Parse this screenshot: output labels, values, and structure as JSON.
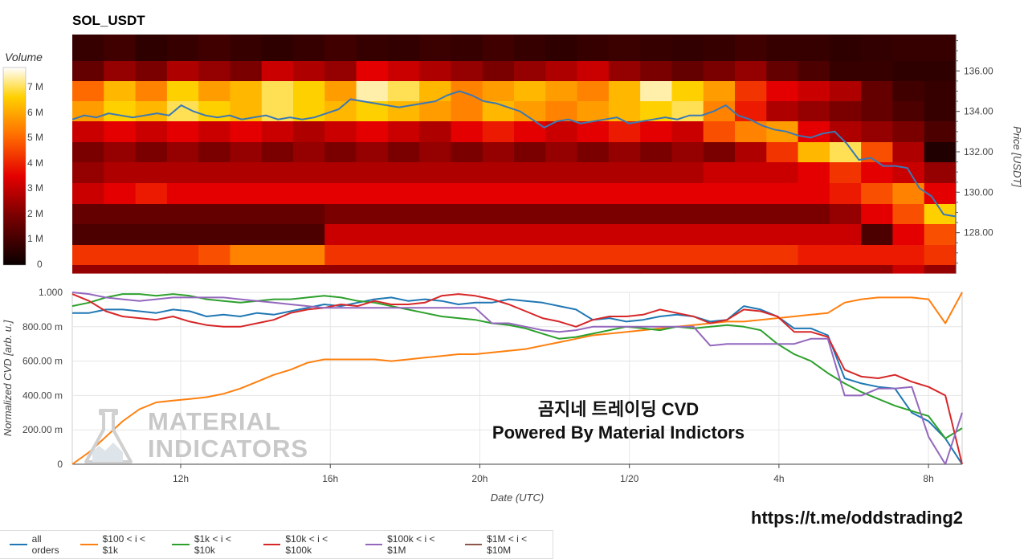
{
  "chart_data": [
    {
      "type": "heatmap",
      "title": "SOL_USDT",
      "colorbar_title": "Volume",
      "colorbar_ticks": [
        "7 M",
        "6 M",
        "5 M",
        "4 M",
        "3 M",
        "2 M",
        "1 M",
        "0"
      ],
      "ylabel": "Price [USDT]",
      "ylim": [
        126.0,
        137.8
      ],
      "y_ticks": [
        "136.00",
        "134.00",
        "132.00",
        "130.00",
        "128.00"
      ],
      "price_levels": [
        136.5,
        135.5,
        134.5,
        133.5,
        132.5,
        131.5,
        130.5,
        129.5,
        128.5,
        127.5,
        126.5,
        126.1
      ],
      "price_series": {
        "name": "Price",
        "color": "#3a78b5",
        "values": [
          133.6,
          133.8,
          133.7,
          133.9,
          133.8,
          133.7,
          133.8,
          133.9,
          133.8,
          134.3,
          134.0,
          133.8,
          133.7,
          133.8,
          133.6,
          133.7,
          133.8,
          133.6,
          133.7,
          133.6,
          133.7,
          133.9,
          134.1,
          134.6,
          134.5,
          134.4,
          134.3,
          134.2,
          134.3,
          134.4,
          134.5,
          134.8,
          135.0,
          134.8,
          134.5,
          134.4,
          134.2,
          134.0,
          133.6,
          133.2,
          133.5,
          133.6,
          133.4,
          133.5,
          133.6,
          133.7,
          133.4,
          133.5,
          133.6,
          133.7,
          133.6,
          133.8,
          133.8,
          134.0,
          134.3,
          133.8,
          133.6,
          133.3,
          133.1,
          133.0,
          132.8,
          132.7,
          132.9,
          133.0,
          132.4,
          131.6,
          131.7,
          131.3,
          131.3,
          131.2,
          130.2,
          129.8,
          128.9,
          128.8
        ]
      },
      "heat_rows": [
        [
          0.1,
          0.12,
          0.08,
          0.1,
          0.12,
          0.1,
          0.08,
          0.1,
          0.12,
          0.1,
          0.09,
          0.11,
          0.1,
          0.12,
          0.1,
          0.08,
          0.1,
          0.11,
          0.1,
          0.09,
          0.1,
          0.12,
          0.1,
          0.1,
          0.08,
          0.09,
          0.1,
          0.1
        ],
        [
          0.2,
          0.3,
          0.25,
          0.35,
          0.3,
          0.25,
          0.4,
          0.35,
          0.3,
          0.45,
          0.4,
          0.35,
          0.3,
          0.25,
          0.3,
          0.35,
          0.4,
          0.3,
          0.25,
          0.2,
          0.25,
          0.3,
          0.2,
          0.15,
          0.1,
          0.1,
          0.08,
          0.08
        ],
        [
          0.65,
          0.8,
          0.7,
          0.85,
          0.75,
          0.8,
          0.9,
          0.85,
          0.75,
          0.95,
          0.9,
          0.8,
          0.7,
          0.75,
          0.8,
          0.75,
          0.7,
          0.8,
          0.95,
          0.85,
          0.75,
          0.55,
          0.45,
          0.4,
          0.35,
          0.2,
          0.12,
          0.1
        ],
        [
          0.75,
          0.85,
          0.8,
          0.9,
          0.85,
          0.8,
          0.9,
          0.85,
          0.8,
          0.85,
          0.8,
          0.75,
          0.7,
          0.8,
          0.75,
          0.7,
          0.75,
          0.8,
          0.85,
          0.9,
          0.7,
          0.5,
          0.35,
          0.3,
          0.25,
          0.2,
          0.15,
          0.1
        ],
        [
          0.4,
          0.45,
          0.4,
          0.45,
          0.4,
          0.45,
          0.4,
          0.35,
          0.4,
          0.45,
          0.4,
          0.35,
          0.45,
          0.5,
          0.45,
          0.4,
          0.45,
          0.5,
          0.45,
          0.4,
          0.6,
          0.7,
          0.75,
          0.45,
          0.35,
          0.3,
          0.25,
          0.15
        ],
        [
          0.25,
          0.3,
          0.25,
          0.3,
          0.25,
          0.3,
          0.25,
          0.3,
          0.25,
          0.3,
          0.25,
          0.3,
          0.25,
          0.3,
          0.25,
          0.3,
          0.25,
          0.3,
          0.25,
          0.3,
          0.25,
          0.35,
          0.55,
          0.8,
          0.9,
          0.6,
          0.35,
          0.05
        ],
        [
          0.3,
          0.35,
          0.35,
          0.35,
          0.35,
          0.35,
          0.35,
          0.35,
          0.35,
          0.35,
          0.35,
          0.35,
          0.35,
          0.35,
          0.35,
          0.35,
          0.35,
          0.35,
          0.35,
          0.35,
          0.4,
          0.4,
          0.4,
          0.45,
          0.55,
          0.45,
          0.4,
          0.3
        ],
        [
          0.4,
          0.45,
          0.5,
          0.45,
          0.45,
          0.45,
          0.45,
          0.45,
          0.45,
          0.45,
          0.45,
          0.45,
          0.45,
          0.45,
          0.45,
          0.45,
          0.45,
          0.45,
          0.45,
          0.45,
          0.45,
          0.45,
          0.45,
          0.45,
          0.5,
          0.6,
          0.7,
          0.45
        ],
        [
          0.2,
          0.2,
          0.2,
          0.2,
          0.2,
          0.2,
          0.2,
          0.2,
          0.25,
          0.25,
          0.25,
          0.25,
          0.25,
          0.25,
          0.25,
          0.25,
          0.25,
          0.25,
          0.25,
          0.25,
          0.25,
          0.25,
          0.25,
          0.25,
          0.3,
          0.45,
          0.6,
          0.85
        ],
        [
          0.15,
          0.15,
          0.15,
          0.15,
          0.15,
          0.15,
          0.15,
          0.15,
          0.4,
          0.4,
          0.4,
          0.4,
          0.4,
          0.4,
          0.4,
          0.4,
          0.4,
          0.4,
          0.4,
          0.4,
          0.4,
          0.4,
          0.4,
          0.4,
          0.4,
          0.15,
          0.45,
          0.6
        ],
        [
          0.55,
          0.55,
          0.55,
          0.55,
          0.6,
          0.7,
          0.7,
          0.7,
          0.55,
          0.55,
          0.55,
          0.55,
          0.55,
          0.55,
          0.55,
          0.55,
          0.55,
          0.55,
          0.55,
          0.55,
          0.55,
          0.55,
          0.55,
          0.5,
          0.5,
          0.5,
          0.5,
          0.55
        ],
        [
          0.3,
          0.3,
          0.3,
          0.3,
          0.3,
          0.3,
          0.3,
          0.3,
          0.3,
          0.3,
          0.3,
          0.3,
          0.3,
          0.3,
          0.3,
          0.3,
          0.3,
          0.3,
          0.3,
          0.3,
          0.3,
          0.3,
          0.3,
          0.3,
          0.3,
          0.3,
          0.4,
          0.3
        ]
      ]
    },
    {
      "type": "line",
      "xlabel": "Date (UTC)",
      "ylabel": "Normalized CVD [arb. u.]",
      "ylim": [
        0,
        1.0
      ],
      "y_ticks": [
        "1.000",
        "800.00 m",
        "600.00 m",
        "400.00 m",
        "200.00 m",
        "0"
      ],
      "x_ticks": [
        "12h",
        "16h",
        "20h",
        "1/20",
        "4h",
        "8h"
      ],
      "x_tick_hours": [
        12,
        16,
        20,
        24,
        28,
        32
      ],
      "x_range_hours": [
        9.1,
        32.9
      ],
      "series": [
        {
          "name": "all orders",
          "color": "#1f77b4",
          "values": [
            0.88,
            0.88,
            0.9,
            0.9,
            0.89,
            0.88,
            0.9,
            0.89,
            0.86,
            0.87,
            0.86,
            0.88,
            0.87,
            0.89,
            0.91,
            0.93,
            0.92,
            0.94,
            0.96,
            0.97,
            0.95,
            0.96,
            0.95,
            0.93,
            0.94,
            0.94,
            0.96,
            0.95,
            0.94,
            0.92,
            0.9,
            0.84,
            0.85,
            0.83,
            0.84,
            0.86,
            0.87,
            0.86,
            0.83,
            0.84,
            0.92,
            0.9,
            0.86,
            0.79,
            0.79,
            0.75,
            0.5,
            0.47,
            0.45,
            0.44,
            0.3,
            0.25,
            0.15,
            0.0
          ]
        },
        {
          "name": "$100 < i < $1k",
          "color": "#ff7f0e",
          "values": [
            0.0,
            0.07,
            0.16,
            0.25,
            0.32,
            0.36,
            0.37,
            0.38,
            0.39,
            0.41,
            0.44,
            0.48,
            0.52,
            0.55,
            0.59,
            0.61,
            0.61,
            0.61,
            0.61,
            0.6,
            0.61,
            0.62,
            0.63,
            0.64,
            0.64,
            0.65,
            0.66,
            0.67,
            0.69,
            0.71,
            0.73,
            0.75,
            0.76,
            0.77,
            0.78,
            0.79,
            0.8,
            0.81,
            0.82,
            0.83,
            0.83,
            0.84,
            0.85,
            0.86,
            0.87,
            0.88,
            0.94,
            0.96,
            0.97,
            0.97,
            0.97,
            0.96,
            0.82,
            1.0
          ]
        },
        {
          "name": "$1k < i < $10k",
          "color": "#2ca02c",
          "values": [
            0.92,
            0.94,
            0.97,
            0.99,
            0.99,
            0.98,
            0.99,
            0.98,
            0.96,
            0.95,
            0.94,
            0.95,
            0.96,
            0.96,
            0.97,
            0.98,
            0.97,
            0.95,
            0.94,
            0.92,
            0.9,
            0.88,
            0.86,
            0.85,
            0.84,
            0.82,
            0.81,
            0.79,
            0.76,
            0.73,
            0.74,
            0.76,
            0.78,
            0.8,
            0.79,
            0.78,
            0.8,
            0.79,
            0.8,
            0.81,
            0.8,
            0.78,
            0.7,
            0.64,
            0.6,
            0.53,
            0.47,
            0.42,
            0.38,
            0.34,
            0.31,
            0.28,
            0.15,
            0.21
          ]
        },
        {
          "name": "$10k < i < $100k",
          "color": "#d62728",
          "values": [
            0.99,
            0.95,
            0.89,
            0.86,
            0.85,
            0.84,
            0.86,
            0.83,
            0.81,
            0.8,
            0.8,
            0.82,
            0.84,
            0.88,
            0.9,
            0.91,
            0.93,
            0.92,
            0.95,
            0.93,
            0.93,
            0.94,
            0.98,
            0.99,
            0.98,
            0.96,
            0.93,
            0.89,
            0.85,
            0.83,
            0.8,
            0.84,
            0.86,
            0.86,
            0.87,
            0.9,
            0.88,
            0.86,
            0.82,
            0.84,
            0.9,
            0.89,
            0.86,
            0.77,
            0.77,
            0.74,
            0.55,
            0.51,
            0.5,
            0.52,
            0.48,
            0.45,
            0.4,
            0.0
          ]
        },
        {
          "name": "$100k < i < $1M",
          "color": "#9467bd",
          "values": [
            1.0,
            0.99,
            0.97,
            0.96,
            0.95,
            0.96,
            0.97,
            0.97,
            0.97,
            0.97,
            0.96,
            0.95,
            0.94,
            0.93,
            0.92,
            0.91,
            0.91,
            0.91,
            0.91,
            0.91,
            0.91,
            0.91,
            0.91,
            0.91,
            0.91,
            0.82,
            0.82,
            0.8,
            0.78,
            0.77,
            0.78,
            0.8,
            0.8,
            0.8,
            0.8,
            0.8,
            0.8,
            0.8,
            0.69,
            0.7,
            0.7,
            0.7,
            0.7,
            0.7,
            0.73,
            0.73,
            0.4,
            0.4,
            0.44,
            0.44,
            0.45,
            0.16,
            0.0,
            0.3
          ]
        },
        {
          "name": "$1M < i < $10M",
          "color": "#8c564b",
          "values": []
        }
      ]
    }
  ],
  "watermark": {
    "title": "곰지네 트레이딩 CVD",
    "subtitle": "Powered By Material Indictors",
    "logo_line1": "MATERIAL",
    "logo_line2": "INDICATORS"
  },
  "link": "https://t.me/oddstrading2"
}
